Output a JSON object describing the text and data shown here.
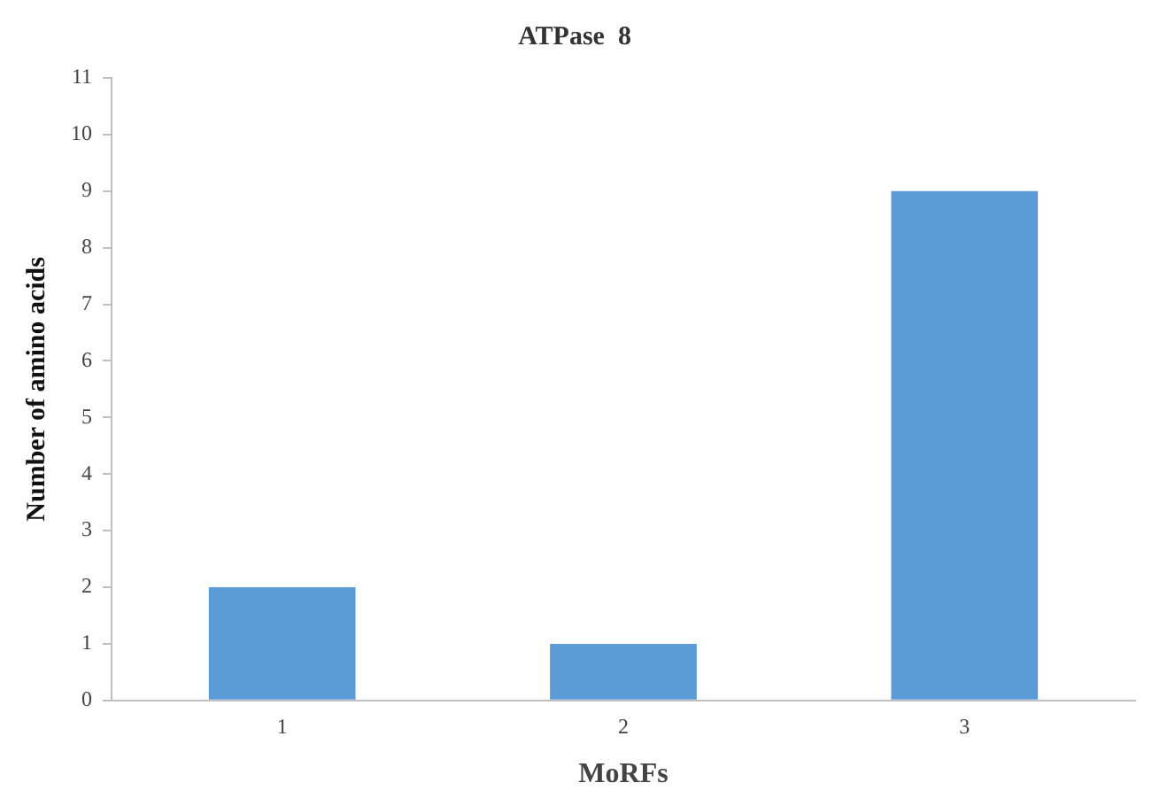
{
  "chart_data": {
    "type": "bar",
    "title": "ATPase  8",
    "xlabel": "MoRFs",
    "ylabel": "Number of amino acids",
    "categories": [
      "1",
      "2",
      "3"
    ],
    "values": [
      2,
      1,
      9
    ],
    "color": "#5b9bd5",
    "ylim": [
      0,
      11
    ],
    "yticks": [
      0,
      1,
      2,
      3,
      4,
      5,
      6,
      7,
      8,
      9,
      10,
      11
    ],
    "grid": false,
    "legend": false
  }
}
